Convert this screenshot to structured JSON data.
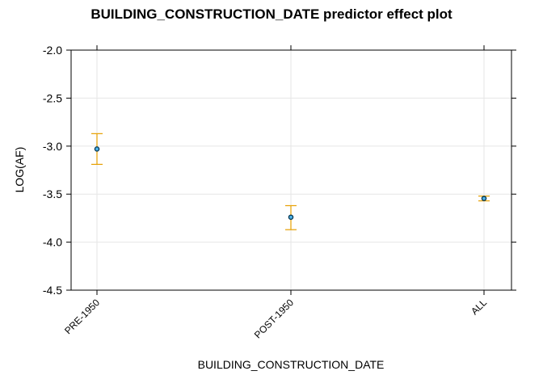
{
  "chart_data": {
    "type": "scatter",
    "title": "BUILDING_CONSTRUCTION_DATE predictor effect plot",
    "xlabel": "BUILDING_CONSTRUCTION_DATE",
    "ylabel": "LOG(AF)",
    "categories": [
      "PRE-1950",
      "POST-1950",
      "ALL"
    ],
    "series": [
      {
        "values": [
          -3.03,
          -3.74,
          -3.545
        ],
        "lower": [
          -3.19,
          -3.87,
          -3.57
        ],
        "upper": [
          -2.87,
          -3.62,
          -3.52
        ]
      }
    ],
    "ylim": [
      -4.5,
      -2.0
    ],
    "yticks": [
      -2.0,
      -2.5,
      -3.0,
      -3.5,
      -4.0,
      -4.5
    ],
    "ytick_labels": [
      "-2.0",
      "-2.5",
      "-3.0",
      "-3.5",
      "-4.0",
      "-4.5"
    ],
    "grid": true,
    "colors": {
      "point": "#0072B2",
      "errorbar": "#E69F00",
      "grid": "#e6e6e6",
      "axis": "#000000"
    }
  }
}
